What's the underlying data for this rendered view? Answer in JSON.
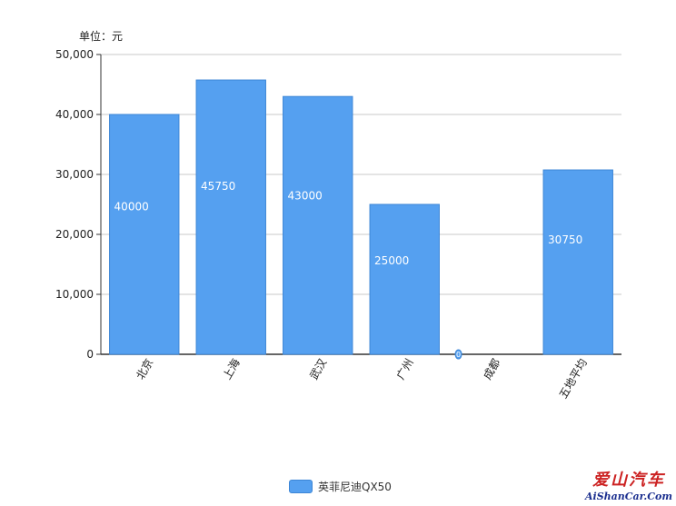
{
  "chart_data": {
    "type": "bar",
    "unit_label": "单位：元",
    "categories": [
      "北京",
      "上海",
      "武汉",
      "广州",
      "成都",
      "五地平均"
    ],
    "series": [
      {
        "name": "英菲尼迪QX50",
        "values": [
          40000,
          45750,
          43000,
          25000,
          0,
          30750
        ]
      }
    ],
    "ylim": [
      0,
      50000
    ],
    "yticks": [
      0,
      10000,
      20000,
      30000,
      40000,
      50000
    ],
    "ytick_labels": [
      "0",
      "10,000",
      "20,000",
      "30,000",
      "40,000",
      "50,000"
    ],
    "grid": true,
    "legend_position": "bottom",
    "colors": {
      "bar": "#55a0f0",
      "bar_border": "#3d86d6",
      "grid": "#c8c8c8",
      "axis": "#333333",
      "label": "#ffffff"
    }
  },
  "watermark": {
    "cn": "爱山汽车",
    "en": "AiShanCar.Com"
  }
}
